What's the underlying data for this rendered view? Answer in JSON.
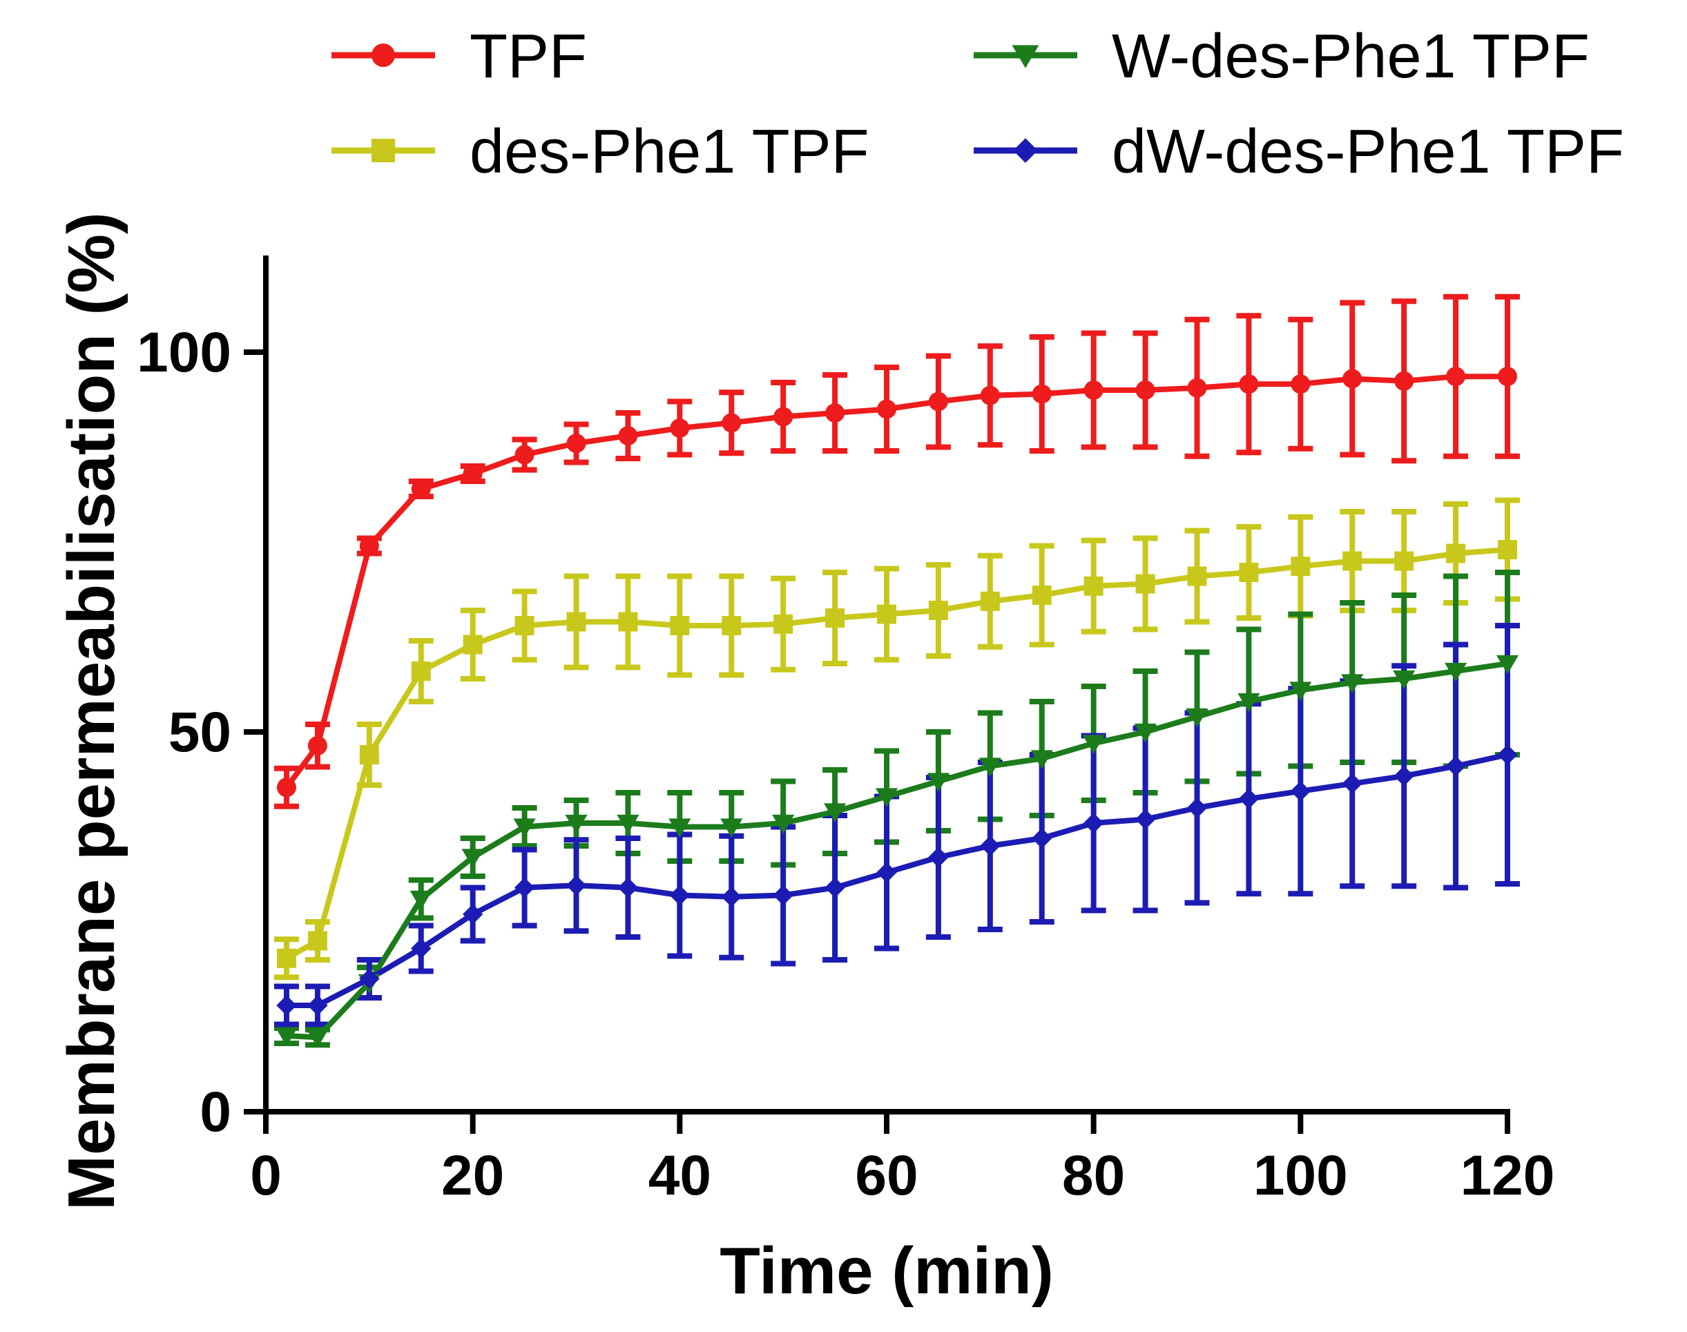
{
  "chart_data": {
    "type": "line",
    "title": "",
    "xlabel": "Time (min)",
    "ylabel": "Membrane permeabilisation (%)",
    "xlim": [
      0,
      120
    ],
    "ylim": [
      0,
      110
    ],
    "xticks": [
      0,
      20,
      40,
      60,
      80,
      100,
      120
    ],
    "yticks": [
      0,
      50,
      100
    ],
    "legend_position": "top",
    "x": [
      2,
      5,
      10,
      15,
      20,
      25,
      30,
      35,
      40,
      45,
      50,
      55,
      60,
      65,
      70,
      75,
      80,
      85,
      90,
      95,
      100,
      105,
      110,
      115,
      120
    ],
    "series": [
      {
        "name": "TPF",
        "color": "#ee1c1c",
        "marker": "circle",
        "values": [
          42.7,
          48.2,
          74.5,
          82.0,
          84.0,
          86.5,
          88.0,
          89.0,
          90.0,
          90.7,
          91.5,
          92.0,
          92.5,
          93.5,
          94.3,
          94.5,
          95.0,
          95.0,
          95.3,
          95.8,
          95.8,
          96.5,
          96.2,
          96.8,
          96.8
        ],
        "errors": [
          2.5,
          2.8,
          1.0,
          1.0,
          1.0,
          2.0,
          2.5,
          3.0,
          3.5,
          4.0,
          4.5,
          5.0,
          5.5,
          6.0,
          6.5,
          7.5,
          7.5,
          7.5,
          9.0,
          9.0,
          8.5,
          10.0,
          10.5,
          10.5,
          10.5
        ]
      },
      {
        "name": "des-Phe1 TPF",
        "color": "#c8c81c",
        "marker": "square",
        "values": [
          20.2,
          22.5,
          47.0,
          58.0,
          61.5,
          64.0,
          64.5,
          64.5,
          64.0,
          64.0,
          64.2,
          65.0,
          65.5,
          66.0,
          67.2,
          68.0,
          69.2,
          69.5,
          70.5,
          71.0,
          71.8,
          72.5,
          72.5,
          73.5,
          74.0
        ],
        "errors": [
          2.5,
          2.5,
          4.0,
          4.0,
          4.5,
          4.5,
          6.0,
          6.0,
          6.5,
          6.5,
          6.0,
          6.0,
          6.0,
          6.0,
          6.0,
          6.5,
          6.0,
          6.0,
          6.0,
          6.0,
          6.5,
          6.5,
          6.5,
          6.5,
          6.5
        ]
      },
      {
        "name": "W-des-Phe1 TPF",
        "color": "#1c7c1c",
        "marker": "triangle-down",
        "values": [
          10.0,
          9.8,
          17.0,
          28.0,
          33.5,
          37.5,
          38.0,
          38.0,
          37.5,
          37.5,
          38.0,
          39.5,
          41.5,
          43.5,
          45.5,
          46.5,
          48.5,
          50.0,
          52.0,
          54.0,
          55.5,
          56.5,
          57.0,
          58.0,
          59.0
        ],
        "errors": [
          1.0,
          1.0,
          2.0,
          2.5,
          2.5,
          2.5,
          3.0,
          4.0,
          4.5,
          4.5,
          5.5,
          5.5,
          6.0,
          6.5,
          7.0,
          7.5,
          7.5,
          8.0,
          8.5,
          9.5,
          10.0,
          10.5,
          11.0,
          12.5,
          12.0
        ]
      },
      {
        "name": "dW-des-Phe1 TPF",
        "color": "#1c1cb4",
        "marker": "diamond",
        "values": [
          14.0,
          14.0,
          17.5,
          21.5,
          26.0,
          29.5,
          29.8,
          29.5,
          28.5,
          28.3,
          28.5,
          29.5,
          31.5,
          33.5,
          35.0,
          36.0,
          38.0,
          38.5,
          40.0,
          41.2,
          42.2,
          43.2,
          44.2,
          45.5,
          47.0
        ],
        "errors": [
          2.5,
          2.5,
          2.5,
          3.0,
          3.5,
          5.0,
          6.0,
          6.5,
          8.0,
          8.0,
          9.0,
          9.5,
          10.0,
          10.5,
          11.0,
          11.0,
          11.5,
          12.0,
          12.5,
          12.5,
          13.5,
          13.5,
          14.5,
          16.0,
          17.0
        ]
      }
    ]
  }
}
